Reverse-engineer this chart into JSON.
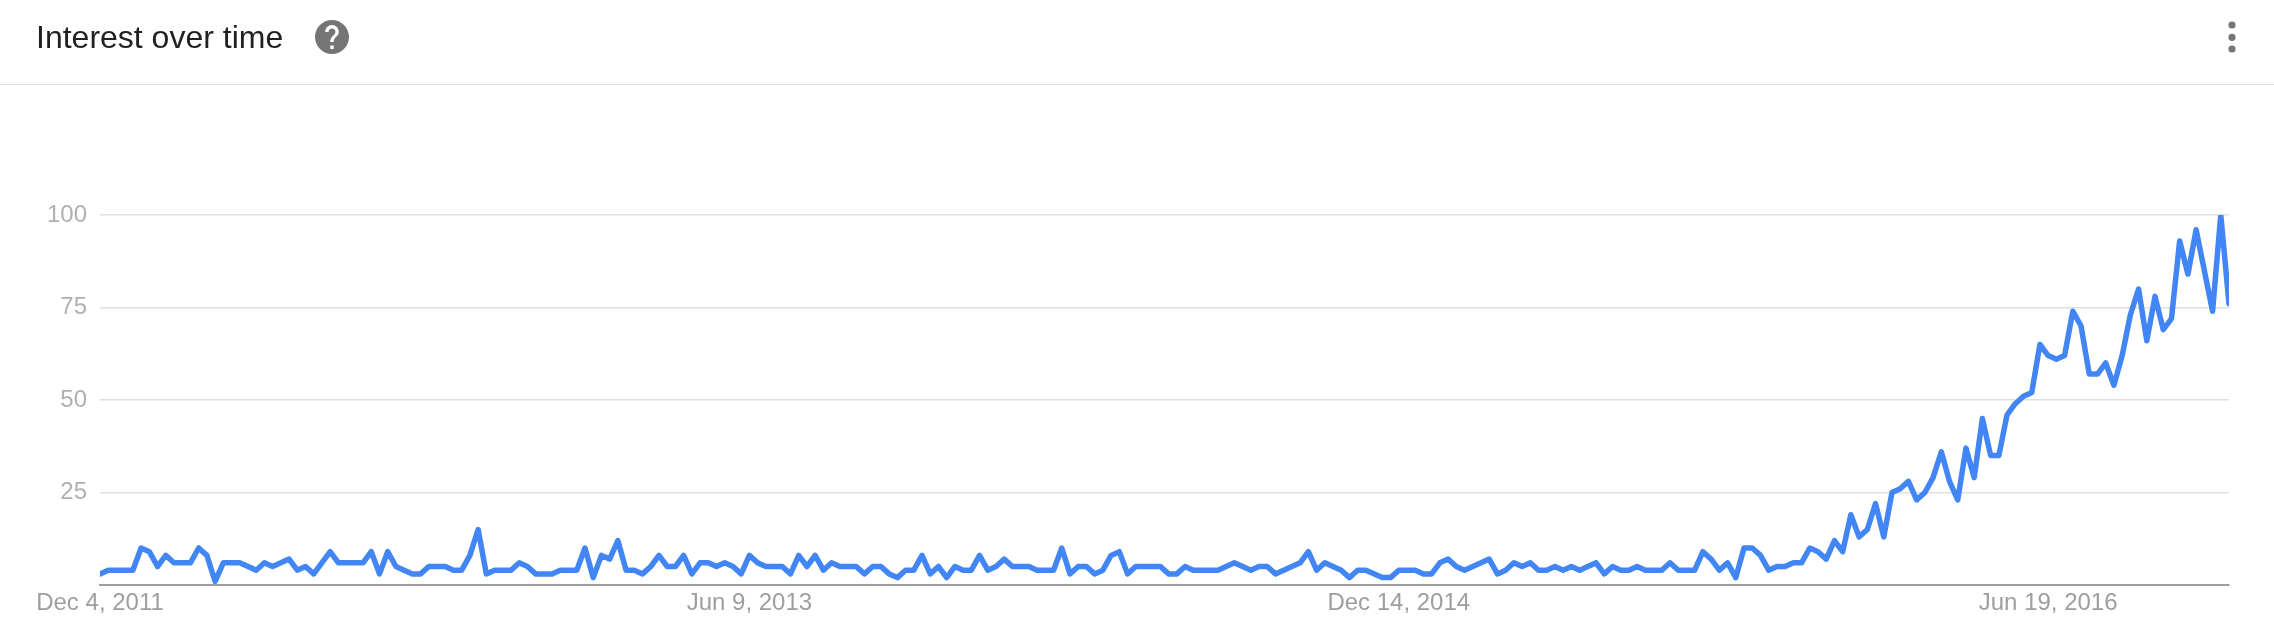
{
  "chart_data": {
    "type": "line",
    "title": "Interest over time",
    "x": [
      "2011-12-04",
      "2011-12-11",
      "2012-01-01",
      "2012-01-08",
      "2012-01-15",
      "2012-01-22",
      "2012-01-29",
      "2012-02-05",
      "2012-02-19",
      "2012-02-26",
      "2012-03-04",
      "2012-03-11",
      "2012-03-18",
      "2012-04-01",
      "2012-04-15",
      "2012-04-22",
      "2012-04-29",
      "2012-05-13",
      "2012-05-20",
      "2012-05-27",
      "2012-06-03",
      "2012-06-17",
      "2012-06-24",
      "2012-07-15",
      "2012-07-22",
      "2012-07-29",
      "2012-08-05",
      "2012-08-12",
      "2012-08-26",
      "2012-09-02",
      "2012-09-09",
      "2012-09-23",
      "2012-09-30",
      "2012-10-07",
      "2012-10-14",
      "2012-10-21",
      "2012-10-28",
      "2012-11-04",
      "2012-11-18",
      "2012-11-25",
      "2012-12-02",
      "2012-12-09",
      "2012-12-23",
      "2012-12-30",
      "2013-01-13",
      "2013-01-20",
      "2013-01-27",
      "2013-02-03",
      "2013-02-10",
      "2013-02-17",
      "2013-02-24",
      "2013-03-03",
      "2013-03-10",
      "2013-03-17",
      "2013-03-24",
      "2013-03-31",
      "2013-04-07",
      "2013-04-14",
      "2013-04-21",
      "2013-04-28",
      "2013-05-05",
      "2013-05-12",
      "2013-05-19",
      "2013-05-26",
      "2013-06-02",
      "2013-06-09",
      "2013-06-16",
      "2013-06-23",
      "2013-07-07",
      "2013-07-14",
      "2013-07-21",
      "2013-07-28",
      "2013-08-04",
      "2013-08-11",
      "2013-08-18",
      "2013-08-25",
      "2013-09-08",
      "2013-09-15",
      "2013-09-22",
      "2013-09-29",
      "2013-10-06",
      "2013-10-13",
      "2013-10-20",
      "2013-10-27",
      "2013-11-03",
      "2013-11-10",
      "2013-11-17",
      "2013-11-24",
      "2013-12-01",
      "2013-12-08",
      "2013-12-15",
      "2013-12-22",
      "2013-12-29",
      "2014-01-05",
      "2014-01-12",
      "2014-01-19",
      "2014-02-02",
      "2014-02-09",
      "2014-02-23",
      "2014-03-02",
      "2014-03-09",
      "2014-03-16",
      "2014-03-23",
      "2014-03-30",
      "2014-04-06",
      "2014-04-13",
      "2014-04-20",
      "2014-04-27",
      "2014-05-04",
      "2014-05-25",
      "2014-06-01",
      "2014-06-08",
      "2014-06-15",
      "2014-06-22",
      "2014-07-13",
      "2014-07-20",
      "2014-07-27",
      "2014-08-03",
      "2014-08-10",
      "2014-08-17",
      "2014-08-24",
      "2014-08-31",
      "2014-09-07",
      "2014-09-14",
      "2014-09-21",
      "2014-09-28",
      "2014-10-05",
      "2014-10-12",
      "2014-10-19",
      "2014-10-26",
      "2014-11-02",
      "2014-11-09",
      "2014-11-16",
      "2014-11-30",
      "2014-12-07",
      "2014-12-14",
      "2014-12-28",
      "2015-01-04",
      "2015-01-11",
      "2015-01-18",
      "2015-01-25",
      "2015-02-01",
      "2015-02-08",
      "2015-02-15",
      "2015-02-22",
      "2015-03-01",
      "2015-03-08",
      "2015-03-15",
      "2015-03-22",
      "2015-03-29",
      "2015-04-05",
      "2015-04-12",
      "2015-04-19",
      "2015-04-26",
      "2015-05-03",
      "2015-05-10",
      "2015-05-17",
      "2015-05-24",
      "2015-05-31",
      "2015-06-07",
      "2015-06-14",
      "2015-06-21",
      "2015-06-28",
      "2015-07-05",
      "2015-07-12",
      "2015-07-26",
      "2015-08-02",
      "2015-08-09",
      "2015-08-23",
      "2015-08-30",
      "2015-09-06",
      "2015-09-13",
      "2015-09-20",
      "2015-09-27",
      "2015-10-04",
      "2015-10-11",
      "2015-10-18",
      "2015-10-25",
      "2015-11-01",
      "2015-11-08",
      "2015-11-15",
      "2015-11-22",
      "2015-11-29",
      "2015-12-06",
      "2015-12-13",
      "2015-12-20",
      "2015-12-27",
      "2016-01-03",
      "2016-01-10",
      "2016-01-17",
      "2016-01-24",
      "2016-01-31",
      "2016-02-07",
      "2016-02-14",
      "2016-02-21",
      "2016-02-28",
      "2016-03-06",
      "2016-03-13",
      "2016-03-20",
      "2016-03-27",
      "2016-04-03",
      "2016-04-10",
      "2016-04-17",
      "2016-04-24",
      "2016-05-01",
      "2016-05-08",
      "2016-05-15",
      "2016-05-22",
      "2016-05-29",
      "2016-06-05",
      "2016-06-12",
      "2016-06-19",
      "2016-06-26",
      "2016-07-03",
      "2016-07-10",
      "2016-07-17",
      "2016-07-24",
      "2016-07-31",
      "2016-08-07",
      "2016-08-14",
      "2016-08-21",
      "2016-08-28",
      "2016-09-04",
      "2016-09-11",
      "2016-09-18",
      "2016-09-25",
      "2016-10-02",
      "2016-10-09",
      "2016-10-16",
      "2016-10-23",
      "2016-11-06",
      "2016-11-13",
      "2016-11-20"
    ],
    "values": [
      3,
      4,
      4,
      10,
      9,
      5,
      8,
      6,
      6,
      10,
      8,
      1,
      6,
      6,
      4,
      6,
      5,
      7,
      4,
      5,
      3,
      9,
      6,
      6,
      9,
      3,
      9,
      5,
      3,
      3,
      5,
      5,
      4,
      4,
      8,
      15,
      3,
      4,
      4,
      6,
      5,
      3,
      3,
      4,
      4,
      10,
      2,
      8,
      7,
      12,
      4,
      4,
      3,
      5,
      8,
      5,
      5,
      8,
      3,
      6,
      6,
      5,
      6,
      5,
      3,
      8,
      6,
      5,
      5,
      3,
      8,
      5,
      8,
      4,
      6,
      5,
      5,
      3,
      5,
      5,
      3,
      2,
      4,
      4,
      8,
      3,
      5,
      2,
      5,
      4,
      4,
      8,
      4,
      5,
      7,
      5,
      5,
      4,
      4,
      10,
      3,
      5,
      5,
      3,
      4,
      8,
      9,
      3,
      5,
      5,
      3,
      3,
      5,
      4,
      4,
      5,
      6,
      5,
      4,
      5,
      5,
      3,
      4,
      5,
      6,
      9,
      4,
      6,
      5,
      4,
      2,
      4,
      4,
      2,
      2,
      4,
      4,
      3,
      3,
      6,
      7,
      5,
      4,
      5,
      6,
      7,
      3,
      4,
      6,
      5,
      6,
      4,
      4,
      5,
      4,
      5,
      4,
      5,
      6,
      3,
      5,
      4,
      4,
      5,
      4,
      4,
      6,
      4,
      4,
      9,
      7,
      4,
      6,
      2,
      10,
      10,
      8,
      4,
      5,
      5,
      6,
      6,
      10,
      9,
      7,
      12,
      9,
      19,
      13,
      15,
      22,
      13,
      25,
      26,
      28,
      23,
      25,
      29,
      36,
      28,
      23,
      37,
      29,
      45,
      35,
      35,
      46,
      49,
      51,
      52,
      65,
      62,
      61,
      62,
      74,
      70,
      57,
      57,
      60,
      54,
      62,
      73,
      80,
      66,
      78,
      69,
      72,
      93,
      84,
      96,
      74,
      100,
      76
    ],
    "color": "#4285f4",
    "xlim": [
      "2011-12-04",
      "2016-11-20"
    ],
    "xticks": [
      {
        "value": "2011-12-04",
        "label": "Dec 4, 2011"
      },
      {
        "value": "2013-06-09",
        "label": "Jun 9, 2013"
      },
      {
        "value": "2014-12-14",
        "label": "Dec 14, 2014"
      },
      {
        "value": "2016-06-19",
        "label": "Jun 19, 2016"
      }
    ],
    "ylim": [
      0,
      100
    ],
    "yticks": [
      25,
      50,
      75,
      100
    ],
    "grid": "y"
  }
}
